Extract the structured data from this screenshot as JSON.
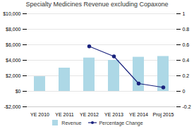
{
  "chart_data": {
    "type": "bar",
    "title": "Specialty Medicines Revenue excluding Copaxone",
    "categories": [
      "YE 2010",
      "YE 2011",
      "YE 2012",
      "YE 2013",
      "YE 2014",
      "Proj 2015"
    ],
    "series": [
      {
        "name": "Revenue",
        "type": "bar",
        "color": "#ADD8E6",
        "values": [
          1900,
          3000,
          4300,
          4000,
          4400,
          4500
        ]
      },
      {
        "name": "Percentage Change",
        "type": "line",
        "color": "#1a237e",
        "marker": "circle",
        "axis": "y2",
        "values": [
          null,
          null,
          0.58,
          0.45,
          0.1,
          0.05
        ]
      }
    ],
    "ylim": [
      -2000,
      10000
    ],
    "yticks": [
      {
        "value": 0,
        "label": "$0"
      },
      {
        "value": 2000,
        "label": "$2,000"
      },
      {
        "value": 4000,
        "label": "$4,000"
      },
      {
        "value": 6000,
        "label": "$6,000"
      },
      {
        "value": 8000,
        "label": "$8,000"
      },
      {
        "value": 10000,
        "label": "$10,000"
      },
      {
        "value": -2000,
        "label": "-$2,000"
      }
    ],
    "y2lim": [
      -0.2,
      1.0
    ],
    "y2ticks": [
      0,
      0.2,
      0.4,
      0.6,
      0.8,
      1,
      -0.2
    ],
    "grid": true,
    "legend": "bottom"
  }
}
